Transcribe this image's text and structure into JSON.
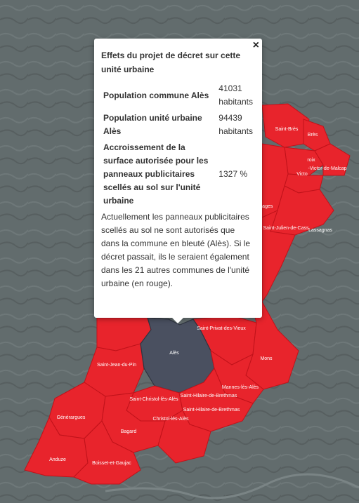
{
  "popup": {
    "close_label": "×",
    "title": "Effets du projet de décret sur cette unité urbaine",
    "rows": [
      {
        "label": "Population commune Alès",
        "value": "41031 habitants"
      },
      {
        "label": "Population unité urbaine Alès",
        "value": "94439 habitants"
      },
      {
        "label": "Accroissement de la surface autorisée pour les panneaux publicitaires scellés au sol sur l'unité urbaine",
        "value": "1327 %"
      }
    ],
    "description": "Actuellement les panneaux publicitaires scellés au sol ne sont autorisés que dans la commune en bleuté (Alès). Si le décret passait, ils le seraient également dans les 21 autres communes de l'unité urbaine (en rouge)."
  },
  "map": {
    "communes": [
      "Saint-Brès",
      "Brès",
      "roix",
      "-Victor-de-Malcap",
      "Victo",
      "lages",
      "Saint-Julien-de-Cass",
      "Lassagnas",
      "Saint-Privat-des-Vieux",
      "Alès",
      "Saint-Jean-du-Pin",
      "Mons",
      "Saint-Christol-lès-Alès",
      "Saint-Hilaire-de-Brethmas",
      "Saint-Hilaire-de-Brethmas",
      "Générargues",
      "Bagard",
      "Anduze",
      "Boisset-et-Gaujac",
      "Christol-lès-Alès",
      "Mannes-lès-Alès"
    ],
    "colors": {
      "commune_fill": "#e8242c",
      "border": "#c0121a",
      "center_commune": "#4a5060",
      "background": "#5f6a6b"
    }
  }
}
